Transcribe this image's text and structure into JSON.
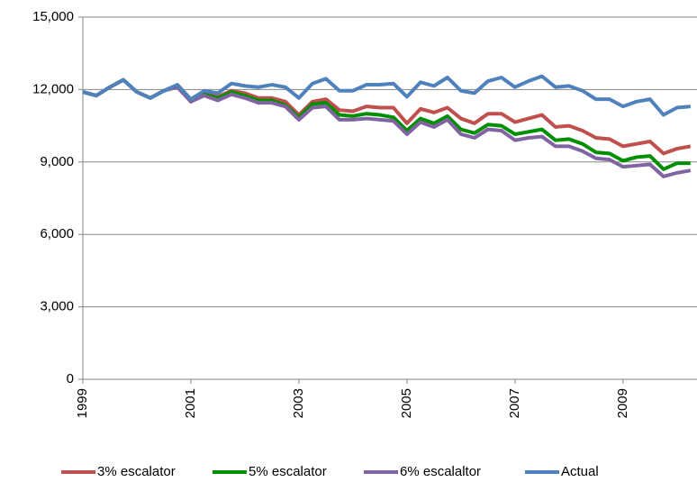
{
  "chart_data": {
    "type": "line",
    "x": [
      1999,
      1999.25,
      1999.5,
      1999.75,
      2000,
      2000.25,
      2000.5,
      2000.75,
      2001,
      2001.25,
      2001.5,
      2001.75,
      2002,
      2002.25,
      2002.5,
      2002.75,
      2003,
      2003.25,
      2003.5,
      2003.75,
      2004,
      2004.25,
      2004.5,
      2004.75,
      2005,
      2005.25,
      2005.5,
      2005.75,
      2006,
      2006.25,
      2006.5,
      2006.75,
      2007,
      2007.25,
      2007.5,
      2007.75,
      2008,
      2008.25,
      2008.5,
      2008.75,
      2009,
      2009.25,
      2009.5,
      2009.75,
      2010,
      2010.25
    ],
    "series": [
      {
        "name": "3% escalator",
        "color": "#c0504d",
        "values": [
          11900,
          11750,
          12100,
          12400,
          11900,
          11650,
          11950,
          12150,
          11550,
          11850,
          11700,
          11950,
          11850,
          11650,
          11650,
          11500,
          10950,
          11500,
          11600,
          11150,
          11100,
          11300,
          11250,
          11250,
          10600,
          11200,
          11050,
          11250,
          10800,
          10600,
          11000,
          11000,
          10650,
          10800,
          10950,
          10450,
          10500,
          10300,
          10000,
          9950,
          9650,
          9750,
          9850,
          9350,
          9550,
          9650
        ]
      },
      {
        "name": "5% escalator",
        "color": "#008f00",
        "values": [
          11900,
          11750,
          12100,
          12400,
          11900,
          11650,
          11950,
          12150,
          11500,
          11800,
          11650,
          11900,
          11750,
          11550,
          11550,
          11350,
          10850,
          11400,
          11450,
          10950,
          10900,
          11000,
          10950,
          10850,
          10300,
          10800,
          10600,
          10900,
          10350,
          10200,
          10550,
          10500,
          10150,
          10250,
          10350,
          9900,
          9950,
          9750,
          9400,
          9350,
          9050,
          9200,
          9250,
          8700,
          8950,
          8950
        ]
      },
      {
        "name": "6% escalaltor",
        "color": "#8064a2",
        "values": [
          11900,
          11750,
          12100,
          12400,
          11900,
          11650,
          11950,
          12100,
          11500,
          11750,
          11550,
          11800,
          11650,
          11450,
          11450,
          11300,
          10750,
          11250,
          11300,
          10750,
          10750,
          10800,
          10750,
          10700,
          10150,
          10650,
          10450,
          10750,
          10150,
          10000,
          10350,
          10300,
          9900,
          10000,
          10050,
          9650,
          9650,
          9450,
          9150,
          9100,
          8800,
          8850,
          8900,
          8400,
          8550,
          8650
        ]
      },
      {
        "name": "Actual",
        "color": "#4f81bd",
        "values": [
          11900,
          11750,
          12100,
          12400,
          11900,
          11650,
          11950,
          12200,
          11600,
          11950,
          11850,
          12250,
          12150,
          12100,
          12200,
          12100,
          11650,
          12250,
          12450,
          11950,
          11950,
          12200,
          12200,
          12250,
          11700,
          12300,
          12150,
          12500,
          11950,
          11850,
          12350,
          12500,
          12100,
          12350,
          12550,
          12100,
          12150,
          11950,
          11600,
          11600,
          11300,
          11500,
          11600,
          10950,
          11250,
          11300
        ]
      }
    ],
    "xlim": [
      1999,
      2010.37
    ],
    "xticks": [
      1999,
      2001,
      2003,
      2005,
      2007,
      2009
    ],
    "ylim": [
      0,
      15000
    ],
    "yticks": [
      0,
      {
        "value": 3000,
        "label": "3,000"
      },
      {
        "value": 6000,
        "label": "6,000"
      },
      {
        "value": 9000,
        "label": "9,000"
      },
      {
        "value": 12000,
        "label": "12,000"
      },
      {
        "value": 15000,
        "label": "15,000"
      }
    ],
    "grid": true
  }
}
